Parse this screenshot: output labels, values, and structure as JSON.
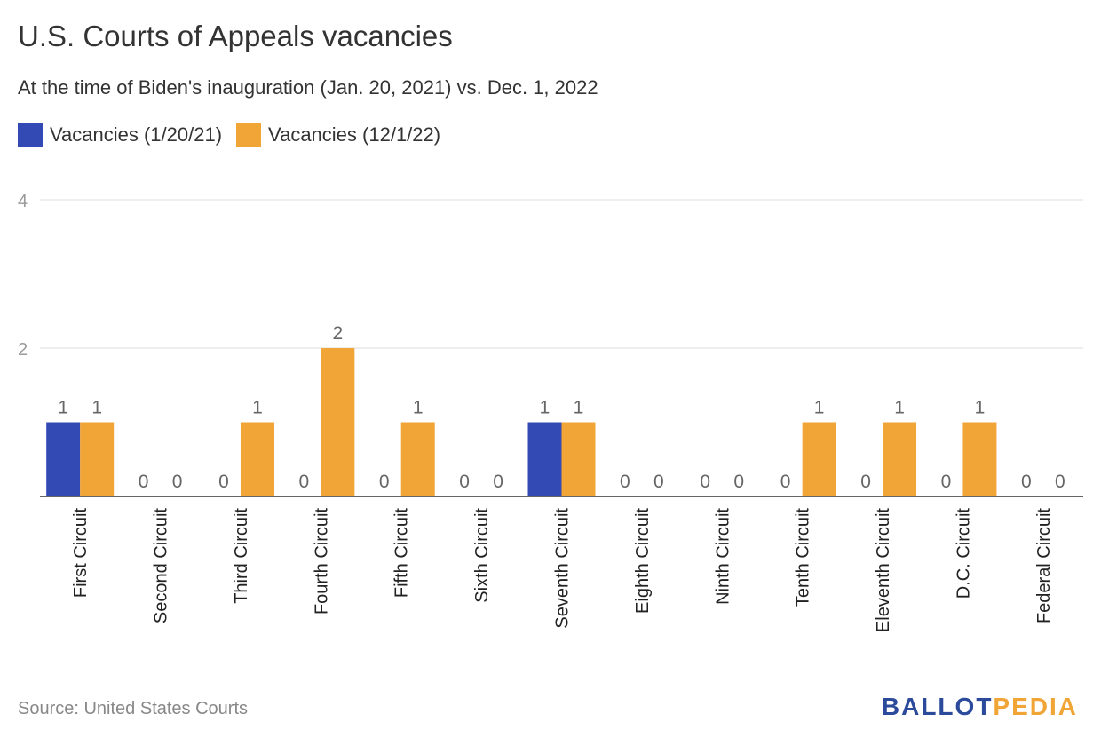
{
  "chart_data": {
    "type": "bar",
    "title": "U.S. Courts of Appeals vacancies",
    "subtitle": "At the time of Biden's inauguration (Jan. 20, 2021) vs. Dec. 1, 2022",
    "categories": [
      "First Circuit",
      "Second Circuit",
      "Third Circuit",
      "Fourth Circuit",
      "Fifth Circuit",
      "Sixth Circuit",
      "Seventh Circuit",
      "Eighth Circuit",
      "Ninth Circuit",
      "Tenth Circuit",
      "Eleventh Circuit",
      "D.C. Circuit",
      "Federal Circuit"
    ],
    "series": [
      {
        "name": "Vacancies (1/20/21)",
        "color": "#3349b3",
        "values": [
          1,
          0,
          0,
          0,
          0,
          0,
          1,
          0,
          0,
          0,
          0,
          0,
          0
        ]
      },
      {
        "name": "Vacancies (12/1/22)",
        "color": "#f0a536",
        "values": [
          1,
          0,
          1,
          2,
          1,
          0,
          1,
          0,
          0,
          1,
          1,
          1,
          0
        ]
      }
    ],
    "yticks": [
      2,
      4
    ],
    "ylim": [
      0,
      4
    ],
    "grid": true,
    "legend_position": "top-left",
    "xlabel": "",
    "ylabel": ""
  },
  "footer": {
    "source": "Source: United States Courts",
    "logo_part1": "BALLOT",
    "logo_part2": "PEDIA",
    "logo_color1": "#2c4a9c",
    "logo_color2": "#f0a536"
  }
}
